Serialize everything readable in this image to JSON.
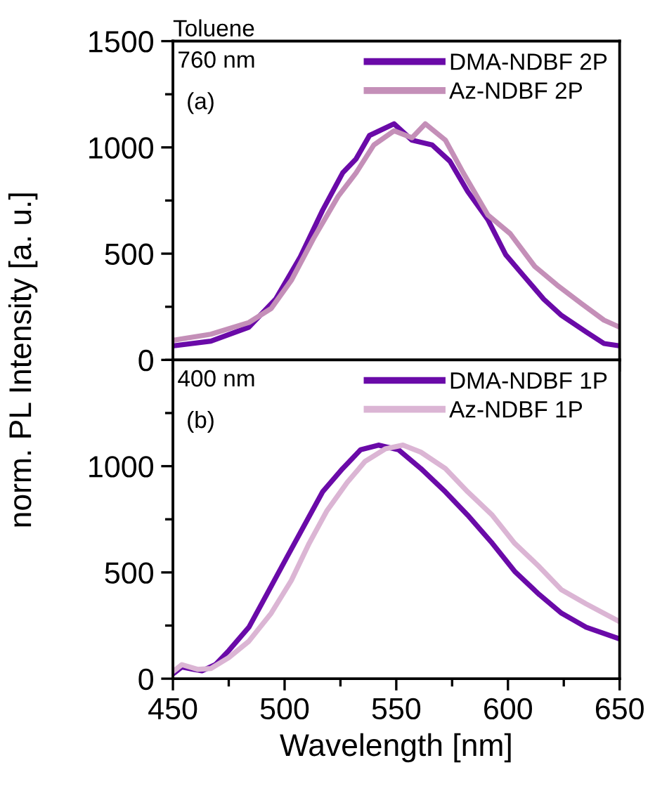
{
  "chart_data": [
    {
      "type": "line",
      "title": "Toluene",
      "ylabel": "norm. PL Intensity [a. u.]",
      "annotations": [
        "760 nm",
        "(a)"
      ],
      "xlim": [
        450,
        650
      ],
      "xticks": [
        450,
        500,
        550,
        600,
        650
      ],
      "ylim": [
        0,
        1500
      ],
      "yticks": [
        0,
        500,
        1000,
        1500
      ],
      "tick_labels": "y",
      "legend": "top right",
      "grid": false,
      "series": [
        {
          "name": "DMA-NDBF 2P",
          "color": "#6a0aa8",
          "x": [
            450,
            467,
            484,
            496,
            507,
            517,
            526,
            532,
            538,
            549,
            557,
            566,
            574,
            582,
            591,
            599,
            607,
            616,
            624,
            635,
            643,
            650
          ],
          "values": [
            66,
            88,
            154,
            286,
            484,
            704,
            880,
            946,
            1056,
            1111,
            1034,
            1012,
            935,
            792,
            660,
            495,
            396,
            286,
            209,
            132,
            77,
            66
          ]
        },
        {
          "name": "Az-NDBF 2P",
          "color": "#c48fb8",
          "x": [
            450,
            467,
            484,
            494,
            503,
            513,
            524,
            532,
            540,
            549,
            557,
            563,
            572,
            580,
            591,
            601,
            612,
            622,
            633,
            643,
            650
          ],
          "values": [
            92,
            121,
            176,
            242,
            374,
            572,
            770,
            880,
            1012,
            1078,
            1045,
            1111,
            1034,
            880,
            682,
            594,
            440,
            352,
            264,
            187,
            154
          ]
        }
      ]
    },
    {
      "type": "line",
      "xlabel": "Wavelength [nm]",
      "annotations": [
        "400 nm",
        "(b)"
      ],
      "xlim": [
        450,
        650
      ],
      "xticks": [
        450,
        500,
        550,
        600,
        650
      ],
      "ylim": [
        0,
        1500
      ],
      "yticks": [
        0,
        500,
        1000
      ],
      "legend": "top right",
      "grid": false,
      "series": [
        {
          "name": "DMA-NDBF 1P",
          "color": "#6a0aa8",
          "x": [
            450,
            454,
            459,
            463,
            469,
            475,
            484,
            492,
            501,
            509,
            517,
            526,
            534,
            542,
            551,
            561,
            572,
            582,
            593,
            603,
            614,
            624,
            635,
            650
          ],
          "values": [
            22,
            55,
            44,
            37,
            66,
            132,
            242,
            396,
            571,
            725,
            879,
            989,
            1077,
            1099,
            1077,
            989,
            879,
            769,
            637,
            505,
            396,
            308,
            242,
            187
          ]
        },
        {
          "name": "Az-NDBF 1P",
          "color": "#dbb5d4",
          "x": [
            450,
            454,
            461,
            467,
            475,
            484,
            494,
            503,
            511,
            519,
            528,
            536,
            545,
            553,
            561,
            572,
            582,
            593,
            603,
            614,
            624,
            635,
            650
          ],
          "values": [
            33,
            66,
            44,
            48,
            99,
            176,
            308,
            462,
            637,
            791,
            923,
            1022,
            1081,
            1099,
            1066,
            989,
            879,
            769,
            637,
            527,
            418,
            352,
            268
          ]
        }
      ]
    }
  ]
}
